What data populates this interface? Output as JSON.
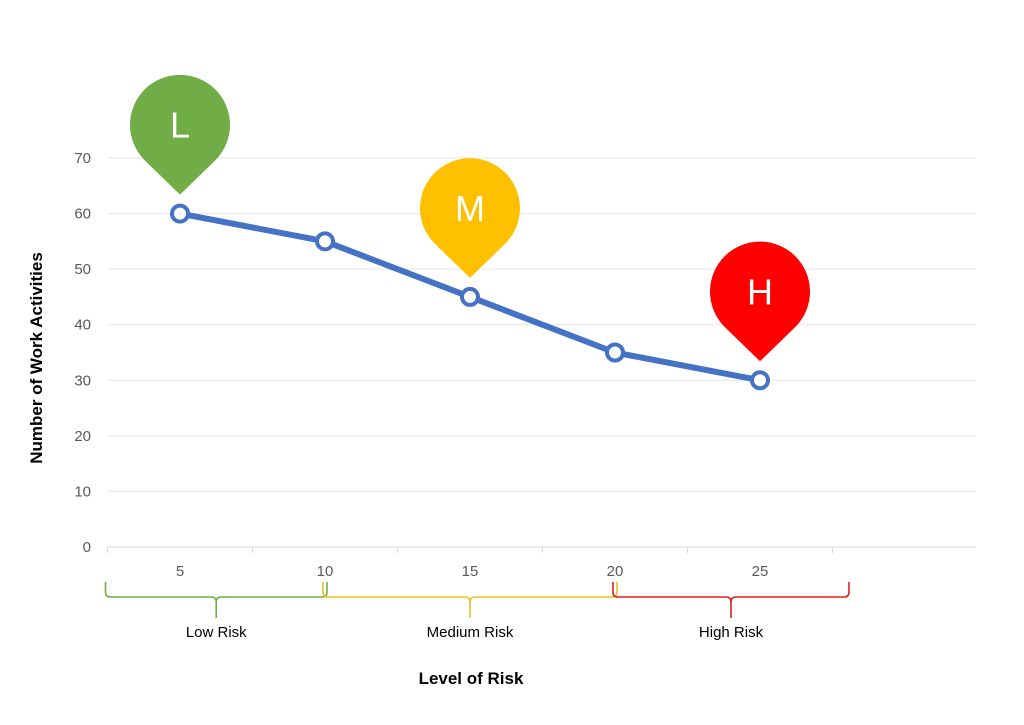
{
  "chart_data": {
    "type": "line",
    "x": [
      5,
      10,
      15,
      20,
      25
    ],
    "series": [
      {
        "values": [
          60,
          55,
          45,
          35,
          30
        ],
        "color": "#4472C4"
      }
    ],
    "xlabel": "Level of Risk",
    "ylabel": "Number of Work Activities",
    "ylim": [
      0,
      70
    ],
    "yticks": [
      0,
      10,
      20,
      30,
      40,
      50,
      60,
      70
    ],
    "xticks": [
      5,
      10,
      15,
      20,
      25
    ],
    "grid": true,
    "risk_bands": [
      {
        "label": "Low Risk",
        "from": 2.5,
        "to": 10,
        "color": "#70AD47"
      },
      {
        "label": "Medium Risk",
        "from": 10,
        "to": 20,
        "color": "#E6C229"
      },
      {
        "label": "High Risk",
        "from": 20,
        "to": 28,
        "color": "#E02020"
      }
    ],
    "markers": [
      {
        "letter": "L",
        "x": 5,
        "y": 60,
        "color": "#70AD47"
      },
      {
        "letter": "M",
        "x": 15,
        "y": 45,
        "color": "#FFC000"
      },
      {
        "letter": "H",
        "x": 25,
        "y": 30,
        "color": "#FF0000"
      }
    ]
  }
}
